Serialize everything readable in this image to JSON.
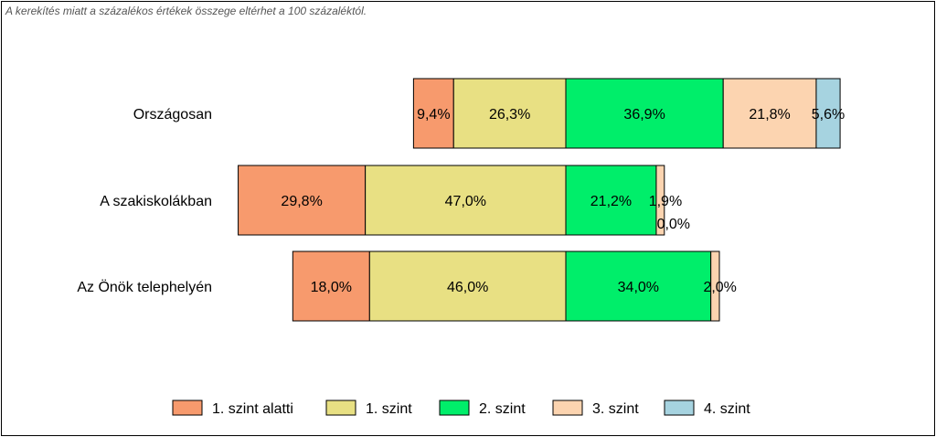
{
  "note": "A kerekítés miatt a  százalékos értékek összege eltérhet a 100 százaléktól.",
  "chart_data": {
    "type": "bar",
    "orientation": "horizontal",
    "stacked": true,
    "categories": [
      "Országosan",
      "A szakiskolákban",
      "Az Önök telephelyén"
    ],
    "series": [
      {
        "name": "1. szint alatti",
        "color": "#f79a6d",
        "values": [
          9.4,
          29.8,
          18.0
        ],
        "labels": [
          "9,4%",
          "29,8%",
          "18,0%"
        ]
      },
      {
        "name": "1. szint",
        "color": "#e8e083",
        "values": [
          26.3,
          47.0,
          46.0
        ],
        "labels": [
          "26,3%",
          "47,0%",
          "46,0%"
        ]
      },
      {
        "name": "2. szint",
        "color": "#00ee6a",
        "values": [
          36.9,
          21.2,
          34.0
        ],
        "labels": [
          "36,9%",
          "21,2%",
          "34,0%"
        ]
      },
      {
        "name": "3. szint",
        "color": "#fcd4b0",
        "values": [
          21.8,
          1.9,
          2.0
        ],
        "labels": [
          "21,8%",
          "1,9%",
          "2,0%"
        ]
      },
      {
        "name": "4. szint",
        "color": "#a6d3e0",
        "values": [
          5.6,
          0.0,
          0.0
        ],
        "labels": [
          "5,6%",
          "0,0%",
          ""
        ]
      }
    ],
    "alignment": "1. szint / 2. szint boundary centered",
    "legend_position": "bottom",
    "grid": false
  }
}
